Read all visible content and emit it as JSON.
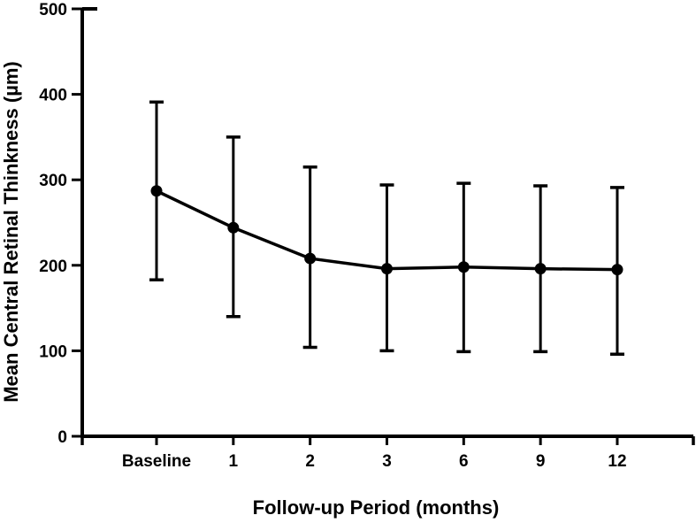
{
  "colors": {
    "ink": "#000000",
    "background": "#ffffff"
  },
  "chart_data": {
    "type": "line",
    "title": "",
    "xlabel": "Follow-up Period (months)",
    "ylabel": "Mean Central Retinal Thinkness (µm)",
    "categories": [
      "Baseline",
      "1",
      "2",
      "3",
      "6",
      "9",
      "12"
    ],
    "yticks": [
      0,
      100,
      200,
      300,
      400,
      500
    ],
    "ylim": [
      0,
      500
    ],
    "grid": false,
    "legend_position": "none",
    "marker": "filled-circle",
    "error_bars": true,
    "series": [
      {
        "values": [
          287,
          244,
          208,
          196,
          198,
          196,
          195
        ],
        "error_upper": [
          391,
          350,
          315,
          294,
          296,
          293,
          291
        ],
        "error_lower": [
          183,
          140,
          104,
          100,
          99,
          99,
          96
        ]
      }
    ]
  }
}
